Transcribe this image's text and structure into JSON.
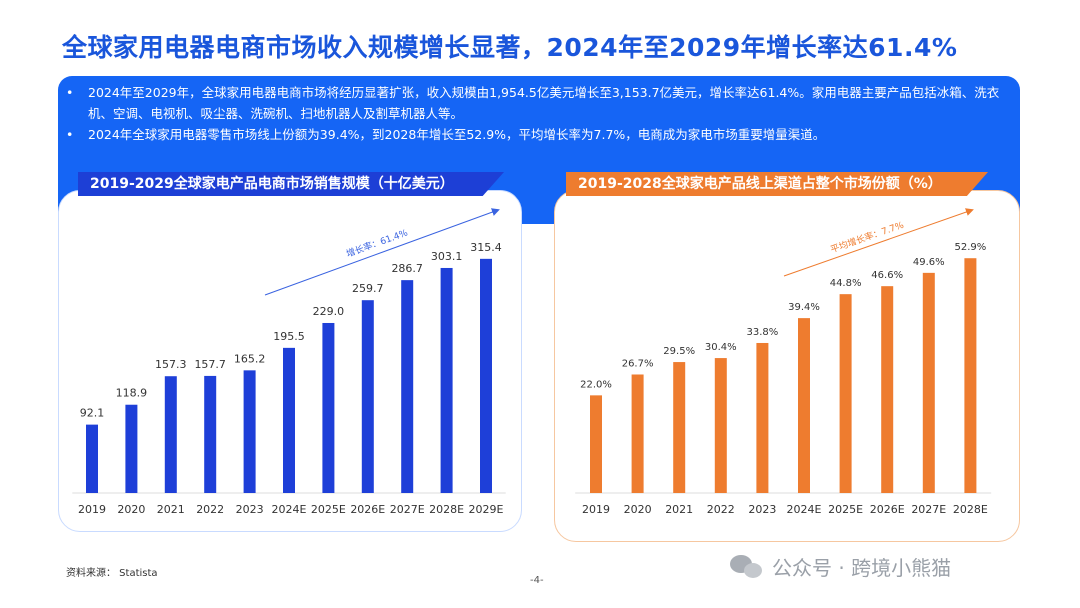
{
  "page": {
    "title": "全球家用电器电商市场收入规模增长显著，2024年至2029年增长率达61.4%",
    "source": "资料来源： Statista",
    "page_number": "-4-",
    "watermark": "公众号 · 跨境小熊猫"
  },
  "summary": {
    "bullets": [
      "2024年至2029年，全球家用电器电商市场将经历显著扩张，收入规模由1,954.5亿美元增长至3,153.7亿美元，增长率达61.4%。家用电器主要产品包括冰箱、洗衣机、空调、电视机、吸尘器、洗碗机、扫地机器人及割草机器人等。",
      "2024年全球家用电器零售市场线上份额为39.4%，到2028年增长至52.9%，平均增长率为7.7%，电商成为家电市场重要增量渠道。"
    ]
  },
  "chart_data": [
    {
      "type": "bar",
      "title": "2019-2029全球家电产品电商市场销售规模（十亿美元）",
      "categories": [
        "2019",
        "2020",
        "2021",
        "2022",
        "2023",
        "2024E",
        "2025E",
        "2026E",
        "2027E",
        "2028E",
        "2029E"
      ],
      "values": [
        92.1,
        118.9,
        157.3,
        157.7,
        165.2,
        195.5,
        229.0,
        259.7,
        286.7,
        303.1,
        315.4
      ],
      "value_labels": [
        "92.1",
        "118.9",
        "157.3",
        "157.7",
        "165.2",
        "195.5",
        "229.0",
        "259.7",
        "286.7",
        "303.1",
        "315.4"
      ],
      "ylim": [
        0,
        330
      ],
      "color": "#1e3fd8",
      "annotation": "增长率：61.4%",
      "annotation_color": "#3a63e0",
      "grid": false
    },
    {
      "type": "bar",
      "title": "2019-2028全球家电产品线上渠道占整个市场份额（%）",
      "categories": [
        "2019",
        "2020",
        "2021",
        "2022",
        "2023",
        "2024E",
        "2025E",
        "2026E",
        "2027E",
        "2028E"
      ],
      "values": [
        22.0,
        26.7,
        29.5,
        30.4,
        33.8,
        39.4,
        44.8,
        46.6,
        49.6,
        52.9
      ],
      "value_labels": [
        "22.0%",
        "26.7%",
        "29.5%",
        "30.4%",
        "33.8%",
        "39.4%",
        "44.8%",
        "46.6%",
        "49.6%",
        "52.9%"
      ],
      "ylim": [
        0,
        55.2
      ],
      "color": "#ee7c2f",
      "annotation": "平均增长率：7.7%",
      "annotation_color": "#ee7c2f",
      "grid": false
    }
  ]
}
